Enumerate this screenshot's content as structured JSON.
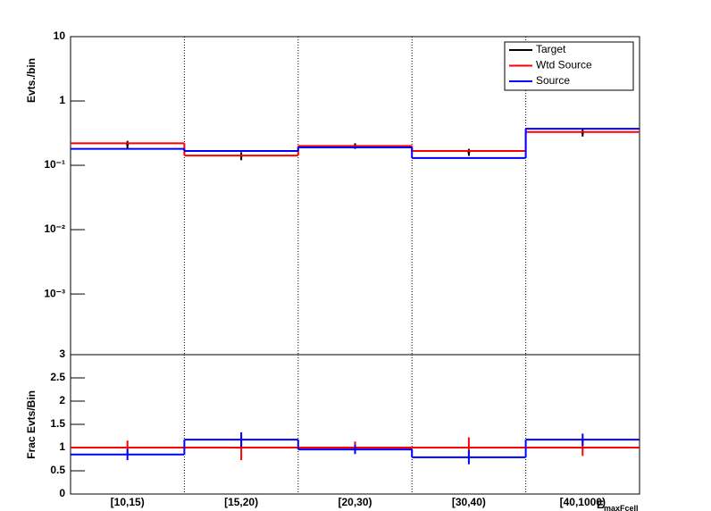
{
  "chart_data": [
    {
      "type": "step",
      "y_label": "Evts./bin",
      "log": true,
      "ylim": [
        0.000114,
        10
      ],
      "yticks": [
        {
          "value": 0.001,
          "label": "10⁻³"
        },
        {
          "value": 0.01,
          "label": "10⁻²"
        },
        {
          "value": 0.1,
          "label": "10⁻¹"
        },
        1,
        10
      ],
      "legend": "top-right",
      "series": [
        {
          "name": "Target",
          "color": "#000000",
          "style": "points",
          "values": [
            0.21,
            0.14,
            0.2,
            0.16,
            0.32
          ],
          "errors": [
            0.03,
            0.02,
            0.02,
            0.02,
            0.04
          ]
        },
        {
          "name": "Wtd Source",
          "color": "#ff0000",
          "style": "step",
          "values": [
            0.22,
            0.142,
            0.2,
            0.167,
            0.33
          ]
        },
        {
          "name": "Source",
          "color": "#0000ff",
          "style": "step",
          "values": [
            0.18,
            0.167,
            0.19,
            0.13,
            0.37
          ]
        }
      ]
    },
    {
      "type": "step",
      "y_label": "Frac Evts/Bin",
      "x_label": "E",
      "x_label_sub": "maxFcell",
      "categories": [
        "[10,15)",
        "[15,20)",
        "[20,30)",
        "[30,40)",
        "[40,1000)"
      ],
      "ylim": [
        0,
        3
      ],
      "yticks": [
        0,
        0.5,
        1,
        1.5,
        2,
        2.5,
        3
      ],
      "series": [
        {
          "color": "#ff0000",
          "style": "step",
          "values": [
            1,
            1,
            1,
            1,
            1
          ],
          "errors": [
            0.15,
            0.27,
            0.13,
            0.22,
            0.18
          ]
        },
        {
          "color": "#0000ff",
          "style": "step",
          "values": [
            0.85,
            1.17,
            0.96,
            0.79,
            1.17
          ],
          "errors": [
            0.12,
            0.16,
            0.1,
            0.15,
            0.13
          ]
        }
      ]
    }
  ]
}
